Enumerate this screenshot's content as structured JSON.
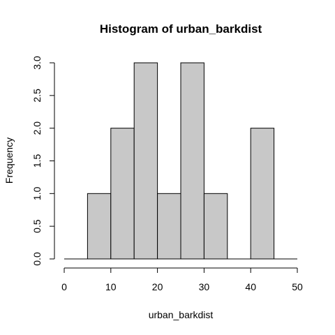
{
  "chart_data": {
    "type": "bar",
    "title": "Histogram of urban_barkdist",
    "xlabel": "urban_barkdist",
    "ylabel": "Frequency",
    "xlim": [
      0,
      50
    ],
    "ylim": [
      0,
      3
    ],
    "x_ticks": [
      0,
      10,
      20,
      30,
      40,
      50
    ],
    "y_ticks": [
      "0.0",
      "0.5",
      "1.0",
      "1.5",
      "2.0",
      "2.5",
      "3.0"
    ],
    "bin_edges": [
      0,
      5,
      10,
      15,
      20,
      25,
      30,
      35,
      40,
      45,
      50
    ],
    "values": [
      0,
      1,
      2,
      3,
      1,
      3,
      1,
      0,
      2,
      0
    ],
    "bar_color": "#c8c8c8",
    "grid": false
  }
}
